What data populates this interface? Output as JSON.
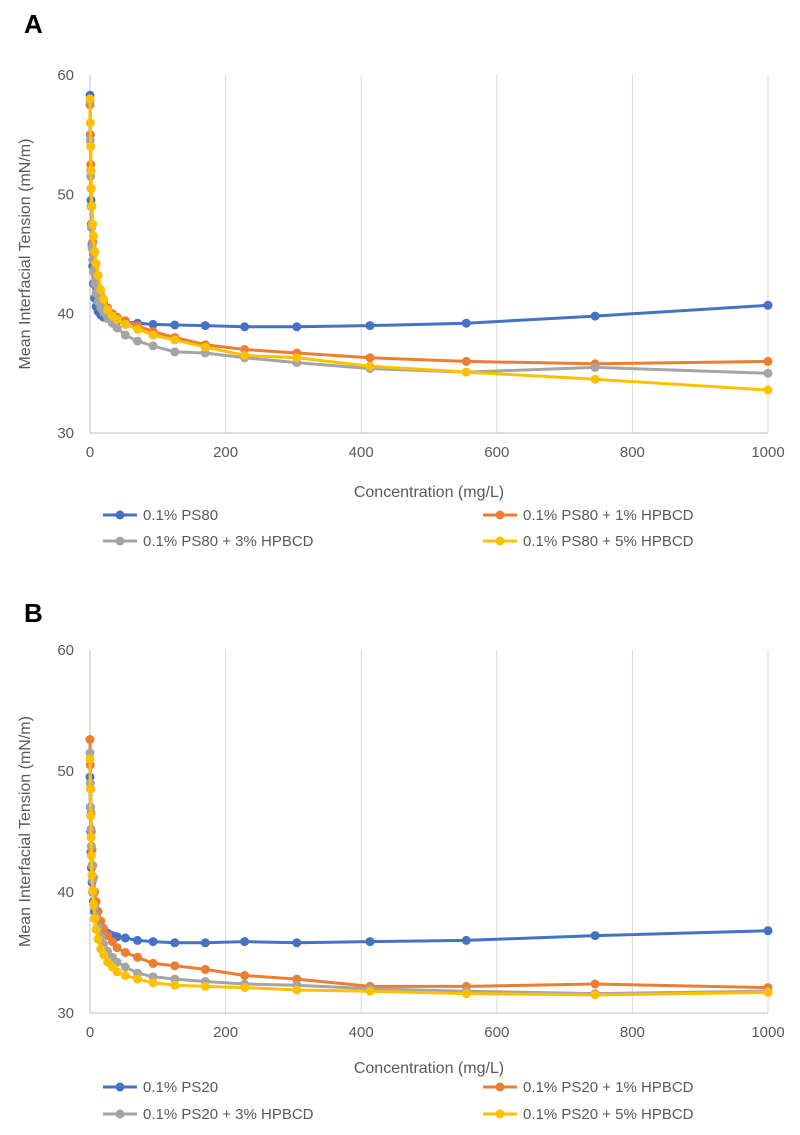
{
  "chart_data": [
    {
      "panel_label": "A",
      "type": "line",
      "xlabel": "Concentration (mg/L)",
      "ylabel": "Mean Interfacial Tension (mN/m)",
      "xlim": [
        0,
        1000
      ],
      "ylim": [
        30,
        60
      ],
      "xticks": [
        "0",
        "200",
        "400",
        "600",
        "800",
        "1000"
      ],
      "yticks": [
        "30",
        "40",
        "50",
        "60"
      ],
      "grid": "vertical",
      "legend_position": "bottom",
      "series": [
        {
          "name": "0.1% PS80",
          "color": "#4472c4",
          "points": [
            [
              0,
              58.3
            ],
            [
              0.5,
              55
            ],
            [
              1,
              52
            ],
            [
              1.5,
              49.5
            ],
            [
              2,
              47.5
            ],
            [
              3,
              45.8
            ],
            [
              4,
              44
            ],
            [
              5,
              42.5
            ],
            [
              7,
              41.3
            ],
            [
              9,
              40.6
            ],
            [
              12,
              40.2
            ],
            [
              16,
              39.9
            ],
            [
              20,
              39.7
            ],
            [
              26,
              39.6
            ],
            [
              33,
              39.5
            ],
            [
              40,
              39.4
            ],
            [
              52,
              39.3
            ],
            [
              70,
              39.2
            ],
            [
              93,
              39.1
            ],
            [
              125,
              39.05
            ],
            [
              170,
              39.0
            ],
            [
              228,
              38.9
            ],
            [
              305,
              38.9
            ],
            [
              413,
              39.0
            ],
            [
              555,
              39.2
            ],
            [
              745,
              39.8
            ],
            [
              1000,
              40.7
            ]
          ]
        },
        {
          "name": "0.1% PS80 + 1% HPBCD",
          "color": "#ed7d31",
          "points": [
            [
              0,
              57.5
            ],
            [
              0.5,
              55
            ],
            [
              1,
              52.5
            ],
            [
              1.5,
              50.5
            ],
            [
              2,
              49
            ],
            [
              3,
              47.5
            ],
            [
              4,
              46
            ],
            [
              5,
              45
            ],
            [
              7,
              43.8
            ],
            [
              9,
              42.8
            ],
            [
              12,
              42.2
            ],
            [
              16,
              41.5
            ],
            [
              20,
              41
            ],
            [
              26,
              40.5
            ],
            [
              33,
              40
            ],
            [
              40,
              39.7
            ],
            [
              52,
              39.4
            ],
            [
              70,
              39.0
            ],
            [
              93,
              38.5
            ],
            [
              125,
              38.0
            ],
            [
              170,
              37.4
            ],
            [
              228,
              37.0
            ],
            [
              305,
              36.7
            ],
            [
              413,
              36.3
            ],
            [
              555,
              36.0
            ],
            [
              745,
              35.8
            ],
            [
              1000,
              36.0
            ]
          ]
        },
        {
          "name": "0.1% PS80 + 3% HPBCD",
          "color": "#a5a5a5",
          "points": [
            [
              0,
              57.8
            ],
            [
              0.5,
              54.5
            ],
            [
              1,
              51.5
            ],
            [
              1.5,
              49
            ],
            [
              2,
              47.2
            ],
            [
              3,
              45.5
            ],
            [
              4,
              44.5
            ],
            [
              5,
              43.5
            ],
            [
              7,
              42.5
            ],
            [
              9,
              41.7
            ],
            [
              12,
              41
            ],
            [
              16,
              40.5
            ],
            [
              20,
              40.1
            ],
            [
              26,
              39.6
            ],
            [
              33,
              39.2
            ],
            [
              40,
              38.8
            ],
            [
              52,
              38.2
            ],
            [
              70,
              37.7
            ],
            [
              93,
              37.3
            ],
            [
              125,
              36.8
            ],
            [
              170,
              36.7
            ],
            [
              228,
              36.3
            ],
            [
              305,
              35.9
            ],
            [
              413,
              35.4
            ],
            [
              555,
              35.1
            ],
            [
              745,
              35.5
            ],
            [
              1000,
              35.0
            ]
          ]
        },
        {
          "name": "0.1% PS80 + 5% HPBCD",
          "color": "#ffc000",
          "points": [
            [
              0,
              58.0
            ],
            [
              0.5,
              56
            ],
            [
              1,
              54
            ],
            [
              1.5,
              52
            ],
            [
              2,
              50.5
            ],
            [
              3,
              49
            ],
            [
              4,
              47.5
            ],
            [
              5,
              46.5
            ],
            [
              7,
              45.2
            ],
            [
              9,
              44.2
            ],
            [
              12,
              43.2
            ],
            [
              16,
              42
            ],
            [
              20,
              41.2
            ],
            [
              26,
              40.3
            ],
            [
              33,
              39.8
            ],
            [
              40,
              39.5
            ],
            [
              52,
              39.1
            ],
            [
              70,
              38.7
            ],
            [
              93,
              38.2
            ],
            [
              125,
              37.8
            ],
            [
              170,
              37.2
            ],
            [
              228,
              36.5
            ],
            [
              305,
              36.3
            ],
            [
              413,
              35.6
            ],
            [
              555,
              35.1
            ],
            [
              745,
              34.5
            ],
            [
              1000,
              33.6
            ]
          ]
        }
      ]
    },
    {
      "panel_label": "B",
      "type": "line",
      "xlabel": "Concentration (mg/L)",
      "ylabel": "Mean Interfacial Tension (mN/m)",
      "xlim": [
        0,
        1000
      ],
      "ylim": [
        30,
        60
      ],
      "xticks": [
        "0",
        "200",
        "400",
        "600",
        "800",
        "1000"
      ],
      "yticks": [
        "30",
        "40",
        "50",
        "60"
      ],
      "grid": "vertical",
      "legend_position": "bottom",
      "series": [
        {
          "name": "0.1% PS20",
          "color": "#4472c4",
          "points": [
            [
              0,
              49.5
            ],
            [
              0.5,
              47
            ],
            [
              1,
              45
            ],
            [
              1.5,
              43.3
            ],
            [
              2,
              42
            ],
            [
              3,
              40.8
            ],
            [
              4,
              40
            ],
            [
              5,
              39.2
            ],
            [
              7,
              38.4
            ],
            [
              9,
              37.8
            ],
            [
              12,
              37.3
            ],
            [
              16,
              37.0
            ],
            [
              20,
              36.8
            ],
            [
              26,
              36.6
            ],
            [
              33,
              36.4
            ],
            [
              40,
              36.3
            ],
            [
              52,
              36.2
            ],
            [
              70,
              36.0
            ],
            [
              93,
              35.9
            ],
            [
              125,
              35.8
            ],
            [
              170,
              35.8
            ],
            [
              228,
              35.9
            ],
            [
              305,
              35.8
            ],
            [
              413,
              35.9
            ],
            [
              555,
              36.0
            ],
            [
              745,
              36.4
            ],
            [
              1000,
              36.8
            ]
          ]
        },
        {
          "name": "0.1% PS20 + 1% HPBCD",
          "color": "#ed7d31",
          "points": [
            [
              0,
              52.6
            ],
            [
              0.5,
              50.5
            ],
            [
              1,
              48.5
            ],
            [
              1.5,
              46.5
            ],
            [
              2,
              45
            ],
            [
              3,
              43.5
            ],
            [
              4,
              42.2
            ],
            [
              5,
              41.2
            ],
            [
              7,
              40
            ],
            [
              9,
              39.2
            ],
            [
              12,
              38.4
            ],
            [
              16,
              37.6
            ],
            [
              20,
              37.0
            ],
            [
              26,
              36.4
            ],
            [
              33,
              35.9
            ],
            [
              40,
              35.4
            ],
            [
              52,
              35.0
            ],
            [
              70,
              34.6
            ],
            [
              93,
              34.1
            ],
            [
              125,
              33.9
            ],
            [
              170,
              33.6
            ],
            [
              228,
              33.1
            ],
            [
              305,
              32.8
            ],
            [
              413,
              32.2
            ],
            [
              555,
              32.2
            ],
            [
              745,
              32.4
            ],
            [
              1000,
              32.1
            ]
          ]
        },
        {
          "name": "0.1% PS20 + 3% HPBCD",
          "color": "#a5a5a5",
          "points": [
            [
              0,
              51.5
            ],
            [
              0.5,
              49
            ],
            [
              1,
              47
            ],
            [
              1.5,
              45.2
            ],
            [
              2,
              43.8
            ],
            [
              3,
              42.2
            ],
            [
              4,
              41
            ],
            [
              5,
              40
            ],
            [
              7,
              38.8
            ],
            [
              9,
              37.9
            ],
            [
              12,
              37.1
            ],
            [
              16,
              36.3
            ],
            [
              20,
              35.7
            ],
            [
              26,
              35.1
            ],
            [
              33,
              34.6
            ],
            [
              40,
              34.2
            ],
            [
              52,
              33.8
            ],
            [
              70,
              33.3
            ],
            [
              93,
              33.0
            ],
            [
              125,
              32.8
            ],
            [
              170,
              32.6
            ],
            [
              228,
              32.4
            ],
            [
              305,
              32.3
            ],
            [
              413,
              32.0
            ],
            [
              555,
              31.8
            ],
            [
              745,
              31.6
            ],
            [
              1000,
              31.8
            ]
          ]
        },
        {
          "name": "0.1% PS20 + 5% HPBCD",
          "color": "#ffc000",
          "points": [
            [
              0,
              51.0
            ],
            [
              0.5,
              48.5
            ],
            [
              1,
              46.3
            ],
            [
              1.5,
              44.5
            ],
            [
              2,
              43
            ],
            [
              3,
              41.4
            ],
            [
              4,
              40.1
            ],
            [
              5,
              39
            ],
            [
              7,
              37.8
            ],
            [
              9,
              36.9
            ],
            [
              12,
              36.1
            ],
            [
              16,
              35.3
            ],
            [
              20,
              34.8
            ],
            [
              26,
              34.2
            ],
            [
              33,
              33.8
            ],
            [
              40,
              33.4
            ],
            [
              52,
              33.1
            ],
            [
              70,
              32.8
            ],
            [
              93,
              32.5
            ],
            [
              125,
              32.3
            ],
            [
              170,
              32.2
            ],
            [
              228,
              32.1
            ],
            [
              305,
              31.9
            ],
            [
              413,
              31.8
            ],
            [
              555,
              31.6
            ],
            [
              745,
              31.5
            ],
            [
              1000,
              31.7
            ]
          ]
        }
      ]
    }
  ]
}
